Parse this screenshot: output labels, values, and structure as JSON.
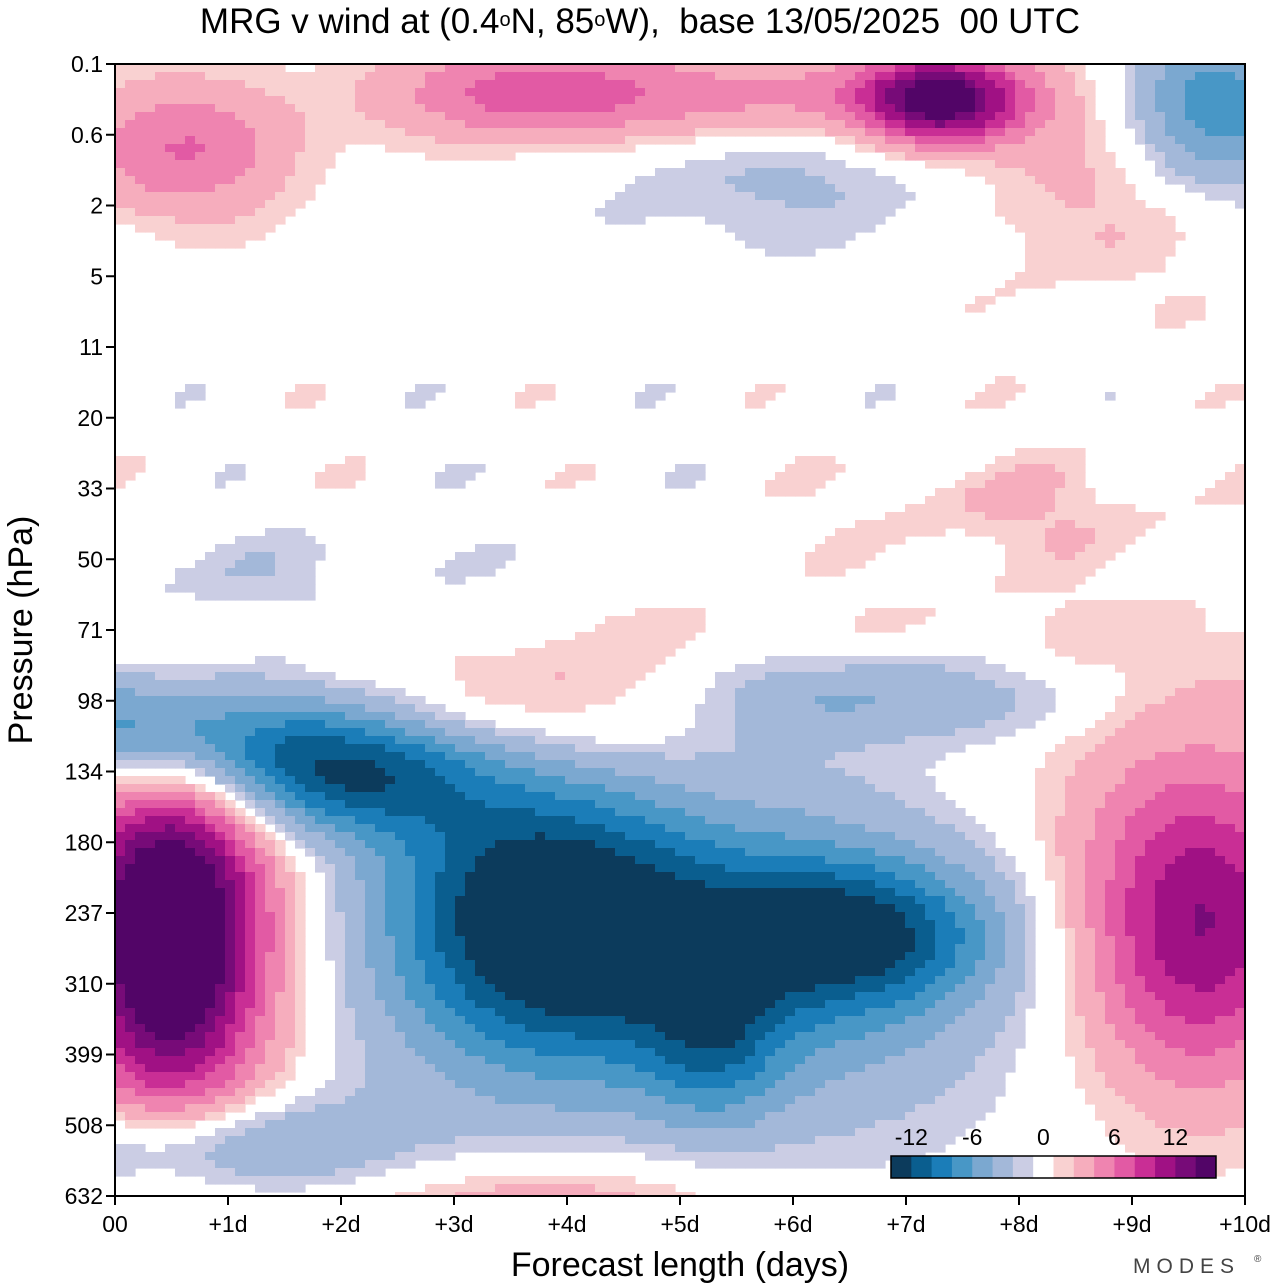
{
  "title": {
    "part1": "MRG v wind at (0.4",
    "deg1": "o",
    "part2": "N, 85",
    "deg2": "o",
    "part3": "W),  base 13/05/2025  00 UTC"
  },
  "brand": "MODES",
  "brand_mark": "®",
  "colors": {
    "neg": [
      "#0c3b5c",
      "#0a5e8f",
      "#1b7db8",
      "#4897c6",
      "#7ba8d0",
      "#a3b8d9",
      "#cbcde4"
    ],
    "zero": "#ffffff",
    "pos": [
      "#f9d1d1",
      "#f6adbd",
      "#ef84b0",
      "#e25aa4",
      "#c92e95",
      "#a01184",
      "#770b78",
      "#520567"
    ]
  },
  "chart_data": {
    "type": "heatmap",
    "title": "MRG v wind at (0.4°N, 85°W),  base 13/05/2025  00 UTC",
    "xlabel": "Forecast length (days)",
    "ylabel": "Pressure (hPa)",
    "xticks": [
      "00",
      "+1d",
      "+2d",
      "+3d",
      "+4d",
      "+5d",
      "+6d",
      "+7d",
      "+8d",
      "+9d",
      "+10d"
    ],
    "yticks": [
      "0.1",
      "0.6",
      "2",
      "5",
      "11",
      "20",
      "33",
      "50",
      "71",
      "98",
      "134",
      "180",
      "237",
      "310",
      "399",
      "508",
      "632"
    ],
    "xlim": [
      0,
      10
    ],
    "colorbar": {
      "tick_labels": [
        "-12",
        "-6",
        "0",
        "6",
        "12"
      ],
      "levels": [
        -14,
        -12,
        -10,
        -8,
        -6,
        -4,
        -2,
        -1,
        1,
        2,
        4,
        6,
        8,
        10,
        12,
        14,
        16
      ]
    },
    "features": [
      {
        "day": 0.5,
        "level_index": 12.3,
        "value": 17,
        "sx": 0.55,
        "sy": 1.7
      },
      {
        "day": 0.6,
        "level_index": 12.1,
        "value": 5,
        "sx": 1.2,
        "sy": 2.3
      },
      {
        "day": 0.3,
        "level_index": 9.4,
        "value": -8,
        "sx": 0.9,
        "sy": 0.6
      },
      {
        "day": 1.0,
        "level_index": 9.7,
        "value": -4,
        "sx": 1.3,
        "sy": 0.9
      },
      {
        "day": 2.0,
        "level_index": 10.0,
        "value": -9,
        "sx": 0.8,
        "sy": 0.6
      },
      {
        "day": 3.2,
        "level_index": 11.0,
        "value": -4,
        "sx": 0.9,
        "sy": 1.6
      },
      {
        "day": 4.0,
        "level_index": 12.2,
        "value": -9,
        "sx": 0.9,
        "sy": 1.2
      },
      {
        "day": 5.5,
        "level_index": 12.5,
        "value": -6,
        "sx": 1.8,
        "sy": 1.6
      },
      {
        "day": 6.5,
        "level_index": 12.3,
        "value": -9,
        "sx": 0.9,
        "sy": 0.7
      },
      {
        "day": 5.3,
        "level_index": 13.8,
        "value": -5,
        "sx": 0.4,
        "sy": 0.8
      },
      {
        "day": 3.5,
        "level_index": 13.0,
        "value": -2.5,
        "sx": 3.0,
        "sy": 1.8
      },
      {
        "day": 0.8,
        "level_index": 15.3,
        "value": -6,
        "sx": 1.2,
        "sy": 0.5
      },
      {
        "day": 6.7,
        "level_index": 8.9,
        "value": -6,
        "sx": 1.6,
        "sy": 0.5
      },
      {
        "day": 3.7,
        "level_index": 9.1,
        "value": 4,
        "sx": 1.1,
        "sy": 0.6
      },
      {
        "day": 3.8,
        "level_index": 16.2,
        "value": 4,
        "sx": 1.3,
        "sy": 0.6
      },
      {
        "day": 9.6,
        "level_index": 12.2,
        "value": 10,
        "sx": 0.7,
        "sy": 1.5
      },
      {
        "day": 9.3,
        "level_index": 11.7,
        "value": 3,
        "sx": 1.3,
        "sy": 2.1
      },
      {
        "day": 0.6,
        "level_index": 1.2,
        "value": 6,
        "sx": 0.7,
        "sy": 0.7
      },
      {
        "day": 3.6,
        "level_index": 0.4,
        "value": 6,
        "sx": 0.9,
        "sy": 0.5
      },
      {
        "day": 5.8,
        "level_index": 0.5,
        "value": 6,
        "sx": 1.4,
        "sy": 0.5
      },
      {
        "day": 7.3,
        "level_index": 0.5,
        "value": 14,
        "sx": 0.5,
        "sy": 0.45
      },
      {
        "day": 8.6,
        "level_index": 1.5,
        "value": 3,
        "sx": 0.8,
        "sy": 1.2
      },
      {
        "day": 9.7,
        "level_index": 0.6,
        "value": -8,
        "sx": 0.6,
        "sy": 0.8
      },
      {
        "day": 6.0,
        "level_index": 1.2,
        "value": -3,
        "sx": 1.3,
        "sy": 0.9
      },
      {
        "day": 6.3,
        "level_index": 8.6,
        "value": 2.5,
        "sx": 3.0,
        "sy": 0.7
      },
      {
        "day": 0.9,
        "level_index": 7.3,
        "value": -2,
        "sx": 1.3,
        "sy": 0.5
      },
      {
        "day": 8.0,
        "level_index": 6.3,
        "value": 2,
        "sx": 1.0,
        "sy": 0.5
      }
    ]
  }
}
